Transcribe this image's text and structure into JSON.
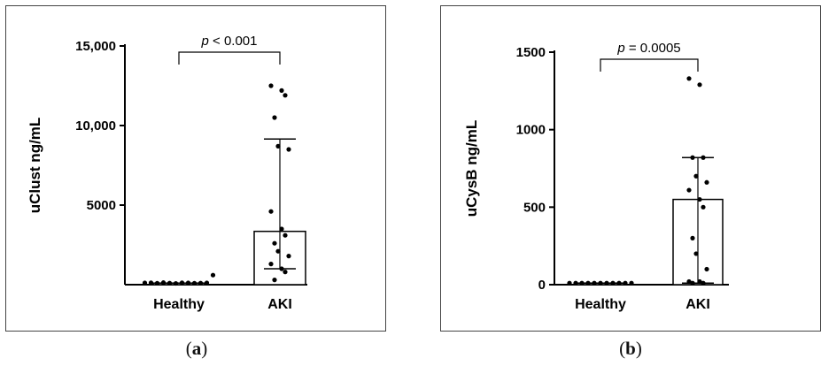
{
  "chart_data": [
    {
      "type": "bar",
      "panel_label": "a",
      "ylabel": "uClust ng/mL",
      "categories": [
        "Healthy",
        "AKI"
      ],
      "ylim": [
        0,
        15000
      ],
      "yticks": [
        {
          "value": 5000,
          "label": "5000"
        },
        {
          "value": 10000,
          "label": "10,000"
        },
        {
          "value": 15000,
          "label": "15,000"
        }
      ],
      "bars": [
        {
          "category": "Healthy",
          "mean": 100,
          "err_low": 100,
          "err_high": 100
        },
        {
          "category": "AKI",
          "mean": 3350,
          "err_low": 1000,
          "err_high": 9150
        }
      ],
      "points": [
        {
          "category": "Healthy",
          "values": [
            110,
            120,
            90,
            130,
            100,
            80,
            120,
            110,
            90,
            100,
            110,
            600
          ]
        },
        {
          "category": "AKI",
          "values": [
            12500,
            12200,
            11900,
            10500,
            8700,
            8500,
            4600,
            3500,
            3100,
            2600,
            2100,
            1800,
            1300,
            1000,
            800,
            300
          ]
        }
      ],
      "annotation": {
        "prefix": "p",
        "text": " < 0.001"
      }
    },
    {
      "type": "bar",
      "panel_label": "b",
      "ylabel": "uCysB ng/mL",
      "categories": [
        "Healthy",
        "AKI"
      ],
      "ylim": [
        0,
        1500
      ],
      "yticks": [
        {
          "value": 0,
          "label": "0"
        },
        {
          "value": 500,
          "label": "500"
        },
        {
          "value": 1000,
          "label": "1000"
        },
        {
          "value": 1500,
          "label": "1500"
        }
      ],
      "bars": [
        {
          "category": "Healthy",
          "mean": 10,
          "err_low": 10,
          "err_high": 10
        },
        {
          "category": "AKI",
          "mean": 550,
          "err_low": 10,
          "err_high": 820
        }
      ],
      "points": [
        {
          "category": "Healthy",
          "values": [
            10,
            10,
            10,
            10,
            10,
            10,
            10,
            10,
            10,
            10,
            10
          ]
        },
        {
          "category": "AKI",
          "values": [
            1330,
            1290,
            820,
            820,
            700,
            660,
            610,
            550,
            500,
            300,
            200,
            100,
            20,
            20,
            10,
            10
          ]
        }
      ],
      "annotation": {
        "prefix": "p",
        "text": " = 0.0005"
      }
    }
  ]
}
